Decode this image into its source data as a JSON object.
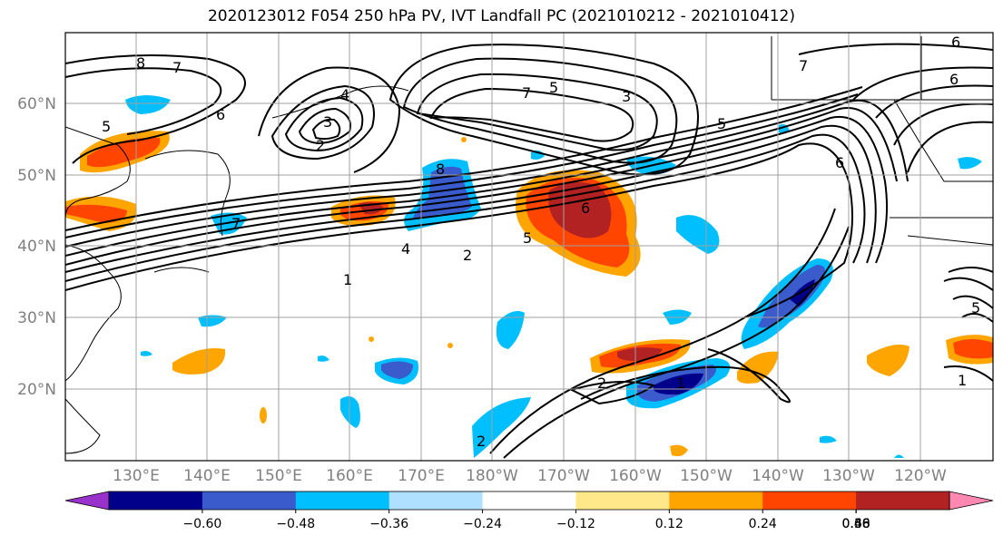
{
  "title": "2020123012 F054 250 hPa PV, IVT Landfall PC (2021010212 - 2021010412)",
  "lat_labels": [
    "60°N",
    "50°N",
    "40°N",
    "30°N",
    "20°N"
  ],
  "lon_labels": [
    "130°E",
    "140°E",
    "150°E",
    "160°E",
    "170°E",
    "180°W",
    "170°W",
    "160°W",
    "150°W",
    "140°W",
    "130°W",
    "120°W"
  ],
  "colorbar": {
    "tick_labels": [
      "−0.60",
      "−0.48",
      "−0.36",
      "−0.24",
      "−0.12",
      "0.12",
      "0.24",
      "0.36",
      "0.48",
      "0.60"
    ],
    "colors": [
      "#9932cc",
      "#00008b",
      "#3a5bcc",
      "#00bfff",
      "#b0e0ff",
      "#ffffff",
      "#ffe88a",
      "#ffa500",
      "#ff4500",
      "#b22222",
      "#ff88b0"
    ]
  },
  "contour_labels": [
    {
      "text": "8"
    },
    {
      "text": "7"
    },
    {
      "text": "6"
    },
    {
      "text": "5"
    },
    {
      "text": "4"
    },
    {
      "text": "3"
    },
    {
      "text": "2"
    },
    {
      "text": "7"
    },
    {
      "text": "5"
    },
    {
      "text": "3"
    },
    {
      "text": "6"
    },
    {
      "text": "7"
    },
    {
      "text": "6"
    },
    {
      "text": "5"
    },
    {
      "text": "8"
    },
    {
      "text": "6"
    },
    {
      "text": "5"
    },
    {
      "text": "4"
    },
    {
      "text": "2"
    },
    {
      "text": "1"
    },
    {
      "text": "7"
    },
    {
      "text": "2"
    },
    {
      "text": "1"
    },
    {
      "text": "2"
    },
    {
      "text": "1"
    },
    {
      "text": "5"
    },
    {
      "text": "6"
    }
  ]
}
